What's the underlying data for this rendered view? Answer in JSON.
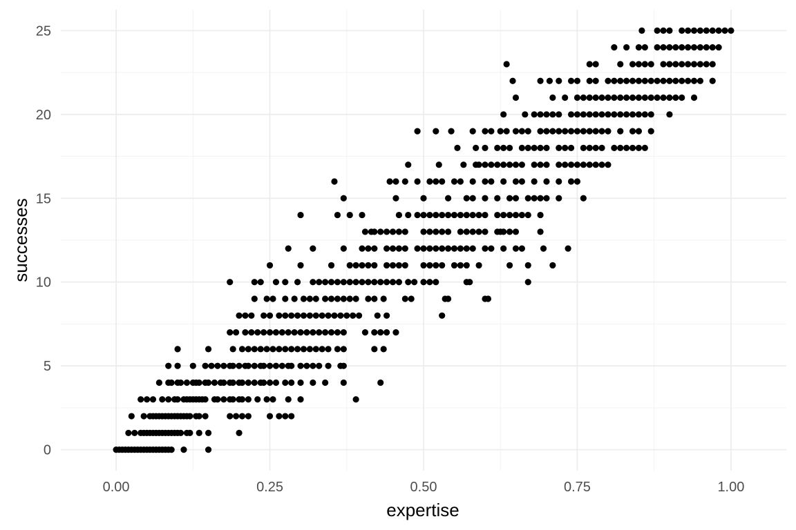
{
  "chart_data": {
    "type": "scatter",
    "xlabel": "expertise",
    "ylabel": "successes",
    "xlim": [
      -0.09,
      1.09
    ],
    "ylim": [
      -1.25,
      26.25
    ],
    "x_ticks": [
      {
        "value": 0,
        "label": "0.00"
      },
      {
        "value": 0.25,
        "label": "0.25"
      },
      {
        "value": 0.5,
        "label": "0.50"
      },
      {
        "value": 0.75,
        "label": "0.75"
      },
      {
        "value": 1,
        "label": "1.00"
      }
    ],
    "y_ticks": [
      {
        "value": 0,
        "label": "0"
      },
      {
        "value": 5,
        "label": "5"
      },
      {
        "value": 10,
        "label": "10"
      },
      {
        "value": 15,
        "label": "15"
      },
      {
        "value": 20,
        "label": "20"
      },
      {
        "value": 25,
        "label": "25"
      }
    ],
    "grid": true,
    "point_color": "#000000",
    "points_by_level": [
      {
        "y": 0,
        "x": [
          0.0,
          0.005,
          0.01,
          0.015,
          0.02,
          0.025,
          0.03,
          0.035,
          0.04,
          0.045,
          0.05,
          0.055,
          0.06,
          0.065,
          0.07,
          0.075,
          0.08,
          0.085,
          0.09,
          0.11,
          0.15
        ]
      },
      {
        "y": 1,
        "x": [
          0.02,
          0.03,
          0.04,
          0.045,
          0.05,
          0.055,
          0.06,
          0.065,
          0.07,
          0.075,
          0.08,
          0.085,
          0.09,
          0.095,
          0.1,
          0.105,
          0.115,
          0.12,
          0.135,
          0.15,
          0.2
        ]
      },
      {
        "y": 2,
        "x": [
          0.025,
          0.045,
          0.055,
          0.06,
          0.065,
          0.07,
          0.075,
          0.08,
          0.085,
          0.09,
          0.095,
          0.1,
          0.105,
          0.11,
          0.115,
          0.12,
          0.13,
          0.135,
          0.145,
          0.185,
          0.195,
          0.205,
          0.215,
          0.25,
          0.265,
          0.275,
          0.285
        ]
      },
      {
        "y": 3,
        "x": [
          0.04,
          0.05,
          0.06,
          0.075,
          0.085,
          0.095,
          0.1,
          0.11,
          0.115,
          0.12,
          0.125,
          0.13,
          0.135,
          0.14,
          0.145,
          0.16,
          0.165,
          0.175,
          0.185,
          0.19,
          0.2,
          0.205,
          0.215,
          0.23,
          0.245,
          0.255,
          0.28,
          0.3,
          0.39
        ]
      },
      {
        "y": 4,
        "x": [
          0.07,
          0.085,
          0.09,
          0.1,
          0.105,
          0.115,
          0.125,
          0.13,
          0.135,
          0.145,
          0.15,
          0.16,
          0.17,
          0.175,
          0.185,
          0.19,
          0.2,
          0.205,
          0.215,
          0.225,
          0.235,
          0.24,
          0.25,
          0.26,
          0.275,
          0.285,
          0.3,
          0.32,
          0.34,
          0.37,
          0.43
        ]
      },
      {
        "y": 5,
        "x": [
          0.085,
          0.1,
          0.125,
          0.145,
          0.155,
          0.165,
          0.175,
          0.185,
          0.19,
          0.2,
          0.21,
          0.215,
          0.225,
          0.235,
          0.24,
          0.25,
          0.26,
          0.27,
          0.28,
          0.285,
          0.3,
          0.31,
          0.32,
          0.33,
          0.345,
          0.365,
          0.37
        ]
      },
      {
        "y": 6,
        "x": [
          0.1,
          0.15,
          0.19,
          0.205,
          0.215,
          0.225,
          0.235,
          0.245,
          0.255,
          0.265,
          0.275,
          0.285,
          0.295,
          0.305,
          0.315,
          0.325,
          0.335,
          0.345,
          0.36,
          0.37,
          0.42,
          0.435
        ]
      },
      {
        "y": 7,
        "x": [
          0.185,
          0.195,
          0.21,
          0.22,
          0.23,
          0.24,
          0.25,
          0.26,
          0.27,
          0.28,
          0.29,
          0.3,
          0.31,
          0.32,
          0.33,
          0.34,
          0.35,
          0.36,
          0.37,
          0.405,
          0.42,
          0.43,
          0.44,
          0.455
        ]
      },
      {
        "y": 8,
        "x": [
          0.2,
          0.21,
          0.22,
          0.24,
          0.25,
          0.265,
          0.275,
          0.285,
          0.295,
          0.305,
          0.315,
          0.325,
          0.335,
          0.345,
          0.355,
          0.365,
          0.375,
          0.385,
          0.395,
          0.425,
          0.44,
          0.53
        ]
      },
      {
        "y": 9,
        "x": [
          0.225,
          0.245,
          0.255,
          0.275,
          0.29,
          0.305,
          0.315,
          0.325,
          0.34,
          0.35,
          0.36,
          0.37,
          0.38,
          0.39,
          0.41,
          0.42,
          0.435,
          0.47,
          0.48,
          0.535,
          0.54,
          0.6,
          0.605
        ]
      },
      {
        "y": 10,
        "x": [
          0.185,
          0.225,
          0.235,
          0.26,
          0.275,
          0.295,
          0.32,
          0.33,
          0.34,
          0.35,
          0.36,
          0.37,
          0.38,
          0.39,
          0.4,
          0.41,
          0.42,
          0.43,
          0.44,
          0.45,
          0.46,
          0.475,
          0.485,
          0.5,
          0.51,
          0.52,
          0.57,
          0.575,
          0.67
        ]
      },
      {
        "y": 11,
        "x": [
          0.25,
          0.3,
          0.35,
          0.38,
          0.39,
          0.4,
          0.41,
          0.42,
          0.44,
          0.45,
          0.46,
          0.47,
          0.5,
          0.51,
          0.52,
          0.53,
          0.55,
          0.56,
          0.57,
          0.59,
          0.64,
          0.67,
          0.71
        ]
      },
      {
        "y": 12,
        "x": [
          0.28,
          0.32,
          0.37,
          0.4,
          0.41,
          0.42,
          0.44,
          0.45,
          0.46,
          0.47,
          0.49,
          0.5,
          0.51,
          0.52,
          0.53,
          0.54,
          0.55,
          0.56,
          0.57,
          0.58,
          0.6,
          0.61,
          0.63,
          0.65,
          0.66,
          0.695,
          0.735
        ]
      },
      {
        "y": 13,
        "x": [
          0.405,
          0.415,
          0.42,
          0.43,
          0.44,
          0.45,
          0.46,
          0.47,
          0.5,
          0.51,
          0.52,
          0.53,
          0.54,
          0.56,
          0.57,
          0.58,
          0.59,
          0.6,
          0.62,
          0.625,
          0.63,
          0.64,
          0.65,
          0.69
        ]
      },
      {
        "y": 14,
        "x": [
          0.3,
          0.36,
          0.38,
          0.4,
          0.46,
          0.475,
          0.49,
          0.5,
          0.51,
          0.52,
          0.53,
          0.54,
          0.55,
          0.56,
          0.57,
          0.58,
          0.59,
          0.6,
          0.62,
          0.63,
          0.64,
          0.65,
          0.66,
          0.67,
          0.69
        ]
      },
      {
        "y": 15,
        "x": [
          0.37,
          0.455,
          0.5,
          0.54,
          0.57,
          0.58,
          0.6,
          0.62,
          0.64,
          0.65,
          0.67,
          0.68,
          0.69,
          0.7,
          0.72,
          0.76
        ]
      },
      {
        "y": 16,
        "x": [
          0.355,
          0.445,
          0.455,
          0.47,
          0.49,
          0.51,
          0.52,
          0.53,
          0.55,
          0.56,
          0.58,
          0.6,
          0.61,
          0.63,
          0.65,
          0.66,
          0.68,
          0.7,
          0.72,
          0.74,
          0.75
        ]
      },
      {
        "y": 17,
        "x": [
          0.475,
          0.525,
          0.565,
          0.585,
          0.59,
          0.6,
          0.61,
          0.62,
          0.63,
          0.64,
          0.65,
          0.66,
          0.68,
          0.69,
          0.7,
          0.72,
          0.73,
          0.74,
          0.75,
          0.76,
          0.77,
          0.78,
          0.79,
          0.8
        ]
      },
      {
        "y": 18,
        "x": [
          0.555,
          0.585,
          0.6,
          0.62,
          0.63,
          0.64,
          0.66,
          0.67,
          0.68,
          0.69,
          0.7,
          0.72,
          0.73,
          0.74,
          0.76,
          0.77,
          0.78,
          0.79,
          0.81,
          0.82,
          0.83,
          0.84,
          0.85,
          0.86
        ]
      },
      {
        "y": 19,
        "x": [
          0.49,
          0.52,
          0.545,
          0.58,
          0.6,
          0.61,
          0.625,
          0.635,
          0.65,
          0.66,
          0.67,
          0.69,
          0.7,
          0.71,
          0.72,
          0.73,
          0.74,
          0.75,
          0.76,
          0.77,
          0.78,
          0.79,
          0.8,
          0.82,
          0.84,
          0.85,
          0.87
        ]
      },
      {
        "y": 20,
        "x": [
          0.63,
          0.665,
          0.68,
          0.69,
          0.7,
          0.71,
          0.72,
          0.74,
          0.75,
          0.76,
          0.77,
          0.78,
          0.79,
          0.8,
          0.81,
          0.82,
          0.83,
          0.84,
          0.85,
          0.86,
          0.87,
          0.9
        ]
      },
      {
        "y": 21,
        "x": [
          0.65,
          0.71,
          0.73,
          0.75,
          0.76,
          0.77,
          0.78,
          0.79,
          0.8,
          0.81,
          0.82,
          0.83,
          0.84,
          0.85,
          0.86,
          0.87,
          0.88,
          0.89,
          0.9,
          0.91,
          0.92,
          0.94
        ]
      },
      {
        "y": 22,
        "x": [
          0.645,
          0.69,
          0.705,
          0.72,
          0.74,
          0.75,
          0.77,
          0.78,
          0.8,
          0.81,
          0.82,
          0.83,
          0.84,
          0.85,
          0.86,
          0.87,
          0.88,
          0.89,
          0.9,
          0.91,
          0.92,
          0.93,
          0.94,
          0.95,
          0.97
        ]
      },
      {
        "y": 23,
        "x": [
          0.635,
          0.77,
          0.78,
          0.82,
          0.84,
          0.85,
          0.86,
          0.87,
          0.89,
          0.9,
          0.91,
          0.92,
          0.93,
          0.94,
          0.95,
          0.96,
          0.97
        ]
      },
      {
        "y": 24,
        "x": [
          0.81,
          0.83,
          0.85,
          0.86,
          0.88,
          0.89,
          0.9,
          0.91,
          0.92,
          0.93,
          0.94,
          0.95,
          0.96,
          0.97,
          0.98
        ]
      },
      {
        "y": 25,
        "x": [
          0.855,
          0.88,
          0.89,
          0.9,
          0.92,
          0.93,
          0.94,
          0.95,
          0.96,
          0.97,
          0.98,
          0.99,
          1.0
        ]
      }
    ]
  }
}
